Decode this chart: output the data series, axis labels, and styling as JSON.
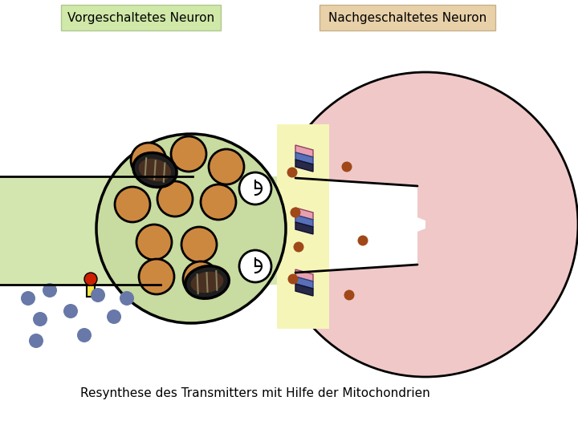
{
  "title_left": "Vorgeschaltetes Neuron",
  "title_right": "Nachgeschaltetes Neuron",
  "caption": "Resynthese des Transmitters mit Hilfe der Mitochondrien",
  "bg_color": "#ffffff",
  "axon_color": "#d4e6b0",
  "axon_outline": "#000000",
  "bulb_color": "#c8dba0",
  "bulb_outline": "#000000",
  "cleft_color": "#f5f5b8",
  "post_color": "#f0c8c8",
  "post_outline": "#000000",
  "vesicle_fill": "#cd8840",
  "vesicle_outline": "#000000",
  "mito_outer": "#1a1a1a",
  "mito_inner": "#4a3a2a",
  "receptor_pink": "#e8a0b0",
  "receptor_blue": "#5870b8",
  "receptor_dark": "#282848",
  "cleft_dot_color": "#a04818",
  "post_dot_color": "#a04818",
  "blue_dot_color": "#6878a8",
  "trans_red": "#cc2000",
  "trans_yellow": "#f8e840",
  "label_left_bg": "#d0e8a8",
  "label_left_edge": "#b0c890",
  "label_right_bg": "#e8d0a8",
  "label_right_edge": "#c8b088"
}
